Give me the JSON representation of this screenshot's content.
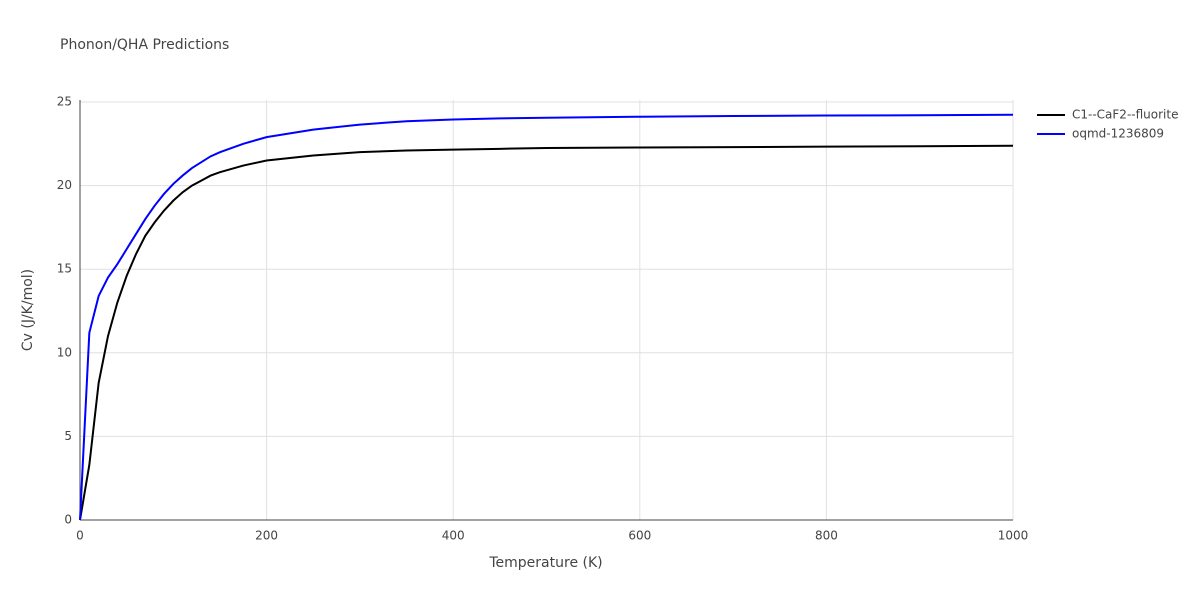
{
  "chart_data": {
    "type": "line",
    "title": "Phonon/QHA Predictions",
    "x_label": "Temperature (K)",
    "y_label": "Cv (J/K/mol)",
    "x": [
      0,
      10,
      20,
      30,
      40,
      50,
      60,
      70,
      80,
      90,
      100,
      110,
      120,
      130,
      140,
      150,
      175,
      200,
      250,
      300,
      350,
      400,
      450,
      500,
      600,
      700,
      800,
      900,
      1000
    ],
    "series": [
      {
        "name": "C1--CaF2--fluorite",
        "color": "#000000",
        "values": [
          0,
          3.3,
          8.2,
          11,
          13,
          14.6,
          15.9,
          17,
          17.8,
          18.5,
          19.1,
          19.6,
          20,
          20.3,
          20.6,
          20.8,
          21.2,
          21.5,
          21.8,
          22.0,
          22.1,
          22.15,
          22.2,
          22.25,
          22.28,
          22.3,
          22.33,
          22.35,
          22.38
        ]
      },
      {
        "name": "oqmd-1236809",
        "color": "#0000ff",
        "values": [
          0,
          11.2,
          13.4,
          14.5,
          15.3,
          16.2,
          17.1,
          18,
          18.8,
          19.5,
          20.1,
          20.6,
          21.05,
          21.4,
          21.75,
          22,
          22.5,
          22.9,
          23.35,
          23.65,
          23.85,
          23.95,
          24.02,
          24.06,
          24.12,
          24.16,
          24.19,
          24.21,
          24.24
        ]
      }
    ],
    "xlim": [
      0,
      1000
    ],
    "xticks": [
      0,
      200,
      400,
      600,
      800,
      1000
    ],
    "ylim": [
      0,
      25
    ],
    "yticks": [
      0,
      5,
      10,
      15,
      20,
      25
    ],
    "grid": true
  }
}
